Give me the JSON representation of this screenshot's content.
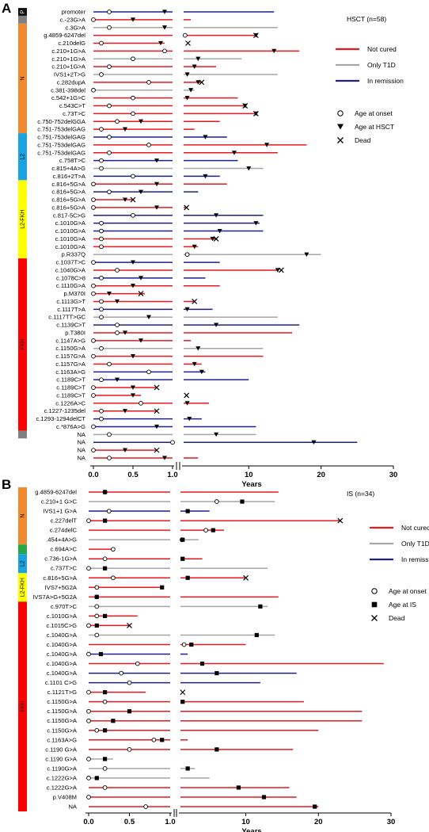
{
  "colors": {
    "not_cured": "#e8191f",
    "only_t1d": "#a6a6a6",
    "in_remission": "#1f1f8f",
    "region_P": "#111111",
    "region_grey": "#808080",
    "region_N": "#f08a30",
    "region_green": "#27a74a",
    "region_L2": "#1aa3e0",
    "region_L2FKH": "#ffff00",
    "region_FKH": "#ff0000"
  },
  "chart_data": [
    {
      "type": "timeline",
      "panel_letter": "A",
      "title": "HSCT  (n=58)",
      "xlabel": "Years",
      "x_ticks_left": [
        "0.0",
        "0.5",
        "1.0"
      ],
      "x_ticks_right": [
        "10",
        "20",
        "30"
      ],
      "xlim_left": [
        0,
        1
      ],
      "xlim_right": [
        1,
        30
      ],
      "legend": {
        "status": [
          "Not cured",
          "Only T1D",
          "In remission"
        ],
        "markers": [
          "Age at onset",
          "Age at HSCT",
          "Dead"
        ]
      },
      "regions": [
        {
          "label": "P",
          "start": 0,
          "end": 0,
          "color_key": "region_P"
        },
        {
          "label": "",
          "start": 1,
          "end": 1,
          "color_key": "region_grey"
        },
        {
          "label": "N",
          "start": 2,
          "end": 15,
          "color_key": "region_N"
        },
        {
          "label": "L2",
          "start": 16,
          "end": 21,
          "color_key": "region_L2"
        },
        {
          "label": "L2-FKH",
          "start": 22,
          "end": 31,
          "color_key": "region_L2FKH"
        },
        {
          "label": "FKH",
          "start": 32,
          "end": 53,
          "color_key": "region_FKH"
        },
        {
          "label": "",
          "start": 54,
          "end": 54,
          "color_key": "region_grey"
        }
      ],
      "rows": [
        {
          "label": "promoter",
          "status": "in_remission",
          "end": 13.5,
          "onset": 0.2,
          "event": 0.9,
          "dead": null
        },
        {
          "label": "c.-23G>A",
          "status": "not_cured",
          "end": 2.0,
          "onset": 0.0,
          "event": 0.5,
          "dead": null
        },
        {
          "label": "c.3G>A",
          "status": "only_t1d",
          "end": 14.0,
          "onset": 0.2,
          "event": 0.9,
          "dead": null
        },
        {
          "label": "g.4859-6247del",
          "status": "not_cured",
          "end": 11.0,
          "onset": 1.2,
          "event": 11.0,
          "dead": 11.0
        },
        {
          "label": "c.210delG",
          "status": "not_cured",
          "end": 0.9,
          "onset": 0.1,
          "event": 0.85,
          "dead": 1.6
        },
        {
          "label": "c.210+1G>A",
          "status": "not_cured",
          "end": 17.0,
          "onset": 0.9,
          "event": 13.5,
          "dead": null
        },
        {
          "label": "c.210+1G>A",
          "status": "only_t1d",
          "end": 9.0,
          "onset": 0.5,
          "event": 3.0,
          "dead": null
        },
        {
          "label": "c.210+1G>A",
          "status": "not_cured",
          "end": 5.5,
          "onset": 0.2,
          "event": 2.5,
          "dead": null
        },
        {
          "label": "IVS1+2T>G",
          "status": "only_t1d",
          "end": 14.0,
          "onset": 0.1,
          "event": 1.5,
          "dead": null
        },
        {
          "label": "c.282dupA",
          "status": "not_cured",
          "end": 3.5,
          "onset": 0.7,
          "event": 3.0,
          "dead": 3.5
        },
        {
          "label": "c.381-398del",
          "status": "only_t1d",
          "end": 2.5,
          "onset": 0.0,
          "event": 2.0,
          "dead": null
        },
        {
          "label": "c.542+1G>C",
          "status": "not_cured",
          "end": 8.5,
          "onset": 0.5,
          "event": 1.5,
          "dead": null
        },
        {
          "label": "c.543C>T",
          "status": "not_cured",
          "end": 9.5,
          "onset": 0.2,
          "event": 9.5,
          "dead": 9.5
        },
        {
          "label": "c.73T>C",
          "status": "not_cured",
          "end": 11.0,
          "onset": 0.5,
          "event": 11.0,
          "dead": 11.0
        },
        {
          "label": "c.750-752delGGA",
          "status": "not_cured",
          "end": 6.0,
          "onset": 0.3,
          "event": 0.6,
          "dead": null
        },
        {
          "label": "c.751-753delGAG",
          "status": "not_cured",
          "end": 2.5,
          "onset": 0.1,
          "event": 0.4,
          "dead": null
        },
        {
          "label": "c.751-753delGAG",
          "status": "in_remission",
          "end": 7.0,
          "onset": 0.2,
          "event": 4.0,
          "dead": null
        },
        {
          "label": "c.751-753delGAG",
          "status": "not_cured",
          "end": 18.0,
          "onset": 0.7,
          "event": 12.5,
          "dead": null
        },
        {
          "label": "c.751-753delGAG",
          "status": "not_cured",
          "end": 14.0,
          "onset": 0.2,
          "event": 8.0,
          "dead": null
        },
        {
          "label": "c.758T>C",
          "status": "in_remission",
          "end": 8.5,
          "onset": 0.1,
          "event": 0.8,
          "dead": null
        },
        {
          "label": "c.815+4A>G",
          "status": "only_t1d",
          "end": 12.0,
          "onset": 0.1,
          "event": 10.0,
          "dead": null
        },
        {
          "label": "c.816+2T>A",
          "status": "in_remission",
          "end": 6.0,
          "onset": 0.5,
          "event": 4.0,
          "dead": null
        },
        {
          "label": "c.816+5G>A",
          "status": "not_cured",
          "end": 7.0,
          "onset": 0.0,
          "event": 0.8,
          "dead": null
        },
        {
          "label": "c.816+5G>A",
          "status": "in_remission",
          "end": 3.0,
          "onset": 0.2,
          "event": 0.6,
          "dead": null
        },
        {
          "label": "c.816+5G>A",
          "status": "not_cured",
          "end": 0.5,
          "onset": 0.0,
          "event": 0.4,
          "dead": 0.5
        },
        {
          "label": "c.816+5G>A",
          "status": "not_cured",
          "end": 1.4,
          "onset": 0.0,
          "event": 0.8,
          "dead": 1.4
        },
        {
          "label": "c.817-5C>G",
          "status": "in_remission",
          "end": 12.0,
          "onset": 0.5,
          "event": 5.5,
          "dead": null
        },
        {
          "label": "c.1010G>A",
          "status": "in_remission",
          "end": 11.5,
          "onset": 0.1,
          "event": 11.0,
          "dead": null
        },
        {
          "label": "c.1010G>A",
          "status": "in_remission",
          "end": 12.0,
          "onset": 0.1,
          "event": 6.0,
          "dead": null
        },
        {
          "label": "c.1010G>A",
          "status": "not_cured",
          "end": 5.5,
          "onset": 0.1,
          "event": 5.0,
          "dead": 5.5
        },
        {
          "label": "c.1010G>A",
          "status": "not_cured",
          "end": 3.0,
          "onset": 0.1,
          "event": 2.5,
          "dead": null
        },
        {
          "label": "p.R337Q",
          "status": "only_t1d",
          "end": 20.0,
          "onset": 1.5,
          "event": 18.0,
          "dead": null
        },
        {
          "label": "c.1037T>C",
          "status": "in_remission",
          "end": 6.0,
          "onset": 0.0,
          "event": 0.5,
          "dead": null
        },
        {
          "label": "c.1040G>A",
          "status": "not_cured",
          "end": 14.0,
          "onset": 0.3,
          "event": 14.0,
          "dead": 14.5
        },
        {
          "label": "c.1078C>8",
          "status": "in_remission",
          "end": 4.0,
          "onset": 0.1,
          "event": 0.6,
          "dead": null
        },
        {
          "label": "c.1110G>A",
          "status": "not_cured",
          "end": 6.0,
          "onset": 0.0,
          "event": 0.5,
          "dead": null
        },
        {
          "label": "p.M370I",
          "status": "not_cured",
          "end": 0.65,
          "onset": 0.0,
          "event": 0.2,
          "dead": 0.6
        },
        {
          "label": "c.1113G>T",
          "status": "not_cured",
          "end": 2.5,
          "onset": 0.1,
          "event": 0.3,
          "dead": 2.5
        },
        {
          "label": "c.1117T>A",
          "status": "in_remission",
          "end": 5.0,
          "onset": 0.1,
          "event": 1.5,
          "dead": null
        },
        {
          "label": "c.1117TT>GC",
          "status": "only_t1d",
          "end": 14.0,
          "onset": 0.1,
          "event": 0.7,
          "dead": null
        },
        {
          "label": "c.1139C>T",
          "status": "in_remission",
          "end": 17.0,
          "onset": 0.3,
          "event": 5.5,
          "dead": null
        },
        {
          "label": "p.T380I",
          "status": "not_cured",
          "end": 16.0,
          "onset": 0.3,
          "event": 0.4,
          "dead": null
        },
        {
          "label": "c.1147A>G",
          "status": "not_cured",
          "end": 2.0,
          "onset": 0.0,
          "event": 0.6,
          "dead": null
        },
        {
          "label": "c.1150G>A",
          "status": "only_t1d",
          "end": 12.0,
          "onset": 0.1,
          "event": 3.0,
          "dead": null
        },
        {
          "label": "c.1157G>A",
          "status": "not_cured",
          "end": 12.0,
          "onset": 0.0,
          "event": 0.5,
          "dead": null
        },
        {
          "label": "c.1157G>A",
          "status": "not_cured",
          "end": 3.5,
          "onset": 0.2,
          "event": 2.5,
          "dead": null
        },
        {
          "label": "c.1163A>G",
          "status": "in_remission",
          "end": 4.0,
          "onset": 0.7,
          "event": 3.5,
          "dead": null
        },
        {
          "label": "c.1189C>T",
          "status": "in_remission",
          "end": 10.0,
          "onset": 0.1,
          "event": 0.3,
          "dead": null
        },
        {
          "label": "c.1189C>T",
          "status": "not_cured",
          "end": 0.8,
          "onset": 0.0,
          "event": 0.5,
          "dead": 0.8
        },
        {
          "label": "c.1189C>T",
          "status": "not_cured",
          "end": 0.6,
          "onset": 0.0,
          "event": 0.5,
          "dead": 1.4
        },
        {
          "label": "c.1226A>C",
          "status": "not_cured",
          "end": 4.5,
          "onset": 0.6,
          "event": 1.5,
          "dead": null
        },
        {
          "label": "c.1227-1235del",
          "status": "not_cured",
          "end": 0.8,
          "onset": 0.1,
          "event": 0.4,
          "dead": 0.8
        },
        {
          "label": "c.1293-1294delCT",
          "status": "in_remission",
          "end": 3.5,
          "onset": 0.1,
          "event": 1.8,
          "dead": null
        },
        {
          "label": "c.*876A>G",
          "status": "in_remission",
          "end": 11.0,
          "onset": 0.0,
          "event": 0.8,
          "dead": null
        },
        {
          "label": "NA",
          "status": "only_t1d",
          "end": 11.0,
          "onset": 0.2,
          "event": 5.5,
          "dead": null
        },
        {
          "label": "NA",
          "status": "in_remission",
          "end": 25.0,
          "onset": 1.0,
          "event": 19.0,
          "dead": null
        },
        {
          "label": "NA",
          "status": "not_cured",
          "end": 0.8,
          "onset": 0.0,
          "event": 0.4,
          "dead": 0.8
        },
        {
          "label": "NA",
          "status": "not_cured",
          "end": 3.0,
          "onset": 0.2,
          "event": 0.9,
          "dead": null
        }
      ]
    },
    {
      "type": "timeline",
      "panel_letter": "B",
      "title": "IS  (n=34)",
      "xlabel": "Years",
      "x_ticks_left": [
        "0.0",
        "0.5",
        "1.0"
      ],
      "x_ticks_right": [
        "10",
        "20",
        "30"
      ],
      "xlim_left": [
        0,
        1
      ],
      "xlim_right": [
        1,
        30
      ],
      "legend": {
        "status": [
          "Not cured",
          "Only  T1D",
          "In remission"
        ],
        "markers": [
          "Age at onset",
          "Age at IS",
          "Dead"
        ]
      },
      "regions": [
        {
          "label": "N",
          "start": 0,
          "end": 5,
          "color_key": "region_N"
        },
        {
          "label": "",
          "start": 6,
          "end": 6,
          "color_key": "region_green"
        },
        {
          "label": "L2",
          "start": 7,
          "end": 8,
          "color_key": "region_L2"
        },
        {
          "label": "L2-FKH",
          "start": 9,
          "end": 11,
          "color_key": "region_L2FKH"
        },
        {
          "label": "FKH",
          "start": 12,
          "end": 33,
          "color_key": "region_FKH"
        }
      ],
      "rows": [
        {
          "label": "g.4859-6247del",
          "status": "not_cured",
          "end": 14.5,
          "onset": 0.2,
          "event": 0.2,
          "dead": null
        },
        {
          "label": "c.210+1 G>C",
          "status": "only_t1d",
          "end": 14.0,
          "onset": 6.0,
          "event": 9.5,
          "dead": null
        },
        {
          "label": "IVS1+1 G>A",
          "status": "in_remission",
          "end": 5.0,
          "onset": 0.25,
          "event": 2.0,
          "dead": null
        },
        {
          "label": "c.227delT",
          "status": "not_cured",
          "end": 23.0,
          "onset": 0.0,
          "event": 0.2,
          "dead": 23.0
        },
        {
          "label": "c.274delC",
          "status": "not_cured",
          "end": 7.0,
          "onset": 4.5,
          "event": 5.5,
          "dead": null
        },
        {
          "label": ".454+4A>G",
          "status": "only_t1d",
          "end": 3.5,
          "onset": 1.2,
          "event": 1.3,
          "dead": null
        },
        {
          "label": "c.694A>C",
          "status": "not_cured",
          "end": 0.3,
          "onset": 0.3,
          "event": null,
          "dead": null
        },
        {
          "label": "c.736-1G>A",
          "status": "not_cured",
          "end": 4.0,
          "onset": 0.2,
          "event": 1.3,
          "dead": null
        },
        {
          "label": "c.737T>C",
          "status": "only_t1d",
          "end": 13.0,
          "onset": 0.0,
          "event": 0.2,
          "dead": null
        },
        {
          "label": "c.816+5G>A",
          "status": "not_cured",
          "end": 10.0,
          "onset": 0.3,
          "event": 2.0,
          "dead": 10.0
        },
        {
          "label": "IVS7+5G2A",
          "status": "not_cured",
          "end": 0.9,
          "onset": 0.1,
          "event": 0.9,
          "dead": null
        },
        {
          "label": "IVS7A>G+5G2A",
          "status": "not_cured",
          "end": 14.5,
          "onset": 0.1,
          "event": 0.1,
          "dead": null
        },
        {
          "label": "c.970T>C",
          "status": "only_t1d",
          "end": 13.0,
          "onset": 0.1,
          "event": 12.0,
          "dead": null
        },
        {
          "label": "c.1010G>A",
          "status": "not_cured",
          "end": 0.6,
          "onset": 0.1,
          "event": 0.2,
          "dead": null
        },
        {
          "label": "c.1015C>G",
          "status": "not_cured",
          "end": 0.5,
          "onset": 0.0,
          "event": 0.1,
          "dead": 0.5
        },
        {
          "label": "c.1040G>A",
          "status": "only_t1d",
          "end": 14.0,
          "onset": 0.1,
          "event": 11.5,
          "dead": null
        },
        {
          "label": "c.1040G>A",
          "status": "not_cured",
          "end": 10.0,
          "onset": 1.5,
          "event": 2.5,
          "dead": null
        },
        {
          "label": "c.1040G>A",
          "status": "in_remission",
          "end": 2.0,
          "onset": 0.0,
          "event": 0.15,
          "dead": null
        },
        {
          "label": "c.1040G>A",
          "status": "not_cured",
          "end": 29.0,
          "onset": 0.6,
          "event": 4.0,
          "dead": null
        },
        {
          "label": "c.1040G>A",
          "status": "in_remission",
          "end": 17.0,
          "onset": 0.4,
          "event": 6.0,
          "dead": null
        },
        {
          "label": "c.1101 C>G",
          "status": "in_remission",
          "end": 12.0,
          "onset": 0.5,
          "event": null,
          "dead": null
        },
        {
          "label": "c.1121T>G",
          "status": "not_cured",
          "end": 0.7,
          "onset": 0.0,
          "event": 0.2,
          "dead": 1.3
        },
        {
          "label": "c.1150G>A",
          "status": "not_cured",
          "end": 18.0,
          "onset": 0.2,
          "event": 1.3,
          "dead": null
        },
        {
          "label": "c.1150G>A",
          "status": "not_cured",
          "end": 26.0,
          "onset": 0.0,
          "event": 0.5,
          "dead": null
        },
        {
          "label": "c.1150G>A",
          "status": "not_cured",
          "end": 26.0,
          "onset": 0.0,
          "event": 0.3,
          "dead": null
        },
        {
          "label": "c.1150G>A",
          "status": "not_cured",
          "end": 20.0,
          "onset": 0.1,
          "event": 0.2,
          "dead": null
        },
        {
          "label": "c.1163A>G",
          "status": "not_cured",
          "end": 2.0,
          "onset": 0.8,
          "event": 0.9,
          "dead": null
        },
        {
          "label": "c.1190 G>A",
          "status": "not_cured",
          "end": 16.5,
          "onset": 0.5,
          "event": 6.0,
          "dead": null
        },
        {
          "label": "c.1190 G>A",
          "status": "only_t1d",
          "end": 0.3,
          "onset": 0.0,
          "event": 0.2,
          "dead": null
        },
        {
          "label": "c.1190G>A",
          "status": "only_t1d",
          "end": 3.0,
          "onset": 0.2,
          "event": 2.0,
          "dead": null
        },
        {
          "label": "c.1222G>A",
          "status": "only_t1d",
          "end": 5.0,
          "onset": 0.0,
          "event": 0.1,
          "dead": null
        },
        {
          "label": "c.1222G>A",
          "status": "not_cured",
          "end": 16.0,
          "onset": 0.2,
          "event": 9.0,
          "dead": null
        },
        {
          "label": "p.V408M",
          "status": "not_cured",
          "end": 17.0,
          "onset": 0.0,
          "event": 12.5,
          "dead": null
        },
        {
          "label": "NA",
          "status": "not_cured",
          "end": 20.0,
          "onset": 0.7,
          "event": 19.5,
          "dead": null
        }
      ]
    }
  ]
}
